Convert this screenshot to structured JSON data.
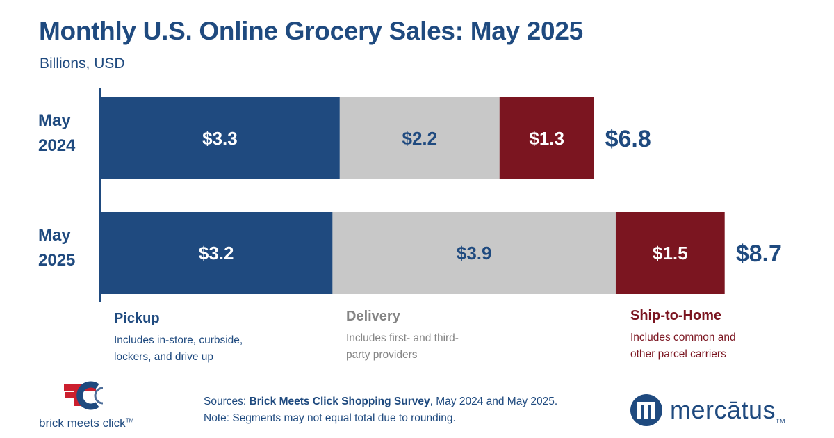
{
  "chart_data": {
    "type": "bar",
    "orientation": "horizontal",
    "stacked": true,
    "title": "Monthly U.S. Online Grocery Sales: May 2025",
    "subtitle": "Billions, USD",
    "categories": [
      "May 2024",
      "May 2025"
    ],
    "category_lines": [
      [
        "May",
        "2024"
      ],
      [
        "May",
        "2025"
      ]
    ],
    "series": [
      {
        "name": "Pickup",
        "values": [
          3.3,
          3.2
        ],
        "labels": [
          "$3.3",
          "$3.2"
        ],
        "color": "#1f4a7f",
        "label_color": "#ffffff"
      },
      {
        "name": "Delivery",
        "values": [
          2.2,
          3.9
        ],
        "labels": [
          "$2.2",
          "$3.9"
        ],
        "color": "#c8c8c8",
        "label_color": "#1f4a7f"
      },
      {
        "name": "Ship-to-Home",
        "values": [
          1.3,
          1.5
        ],
        "labels": [
          "$1.3",
          "$1.5"
        ],
        "color": "#7b1520",
        "label_color": "#ffffff"
      }
    ],
    "totals": [
      6.8,
      8.7
    ],
    "total_labels": [
      "$6.8",
      "$8.7"
    ],
    "xlim": [
      0,
      8.7
    ],
    "grid": false,
    "legend_position": "bottom"
  },
  "legend": [
    {
      "name": "Pickup",
      "desc": [
        "Includes in-store, curbside,",
        "lockers, and drive up"
      ],
      "color": "#1f4a7f",
      "desc_color": "#1f4a7f"
    },
    {
      "name": "Delivery",
      "desc": [
        "Includes first- and third-",
        "party providers"
      ],
      "color": "#858585",
      "desc_color": "#858585"
    },
    {
      "name": "Ship-to-Home",
      "desc": [
        "Includes common and",
        "other parcel carriers"
      ],
      "color": "#7b1520",
      "desc_color": "#7b1520"
    }
  ],
  "footer": {
    "sources_prefix": "Sources: ",
    "sources_bold": "Brick Meets Click Shopping Survey",
    "sources_suffix": ", May 2024 and May 2025.",
    "note": "Note: Segments may not equal total due to rounding."
  },
  "logos": {
    "left": {
      "name": "brick meets click",
      "tm": "TM",
      "icon": "bmc-logo-icon",
      "colors": [
        "#cc1f2e",
        "#1f4a7f"
      ]
    },
    "right": {
      "name": "mercātus",
      "tm": "TM",
      "icon": "mercatus-logo-icon",
      "color": "#1f4a7f"
    }
  }
}
